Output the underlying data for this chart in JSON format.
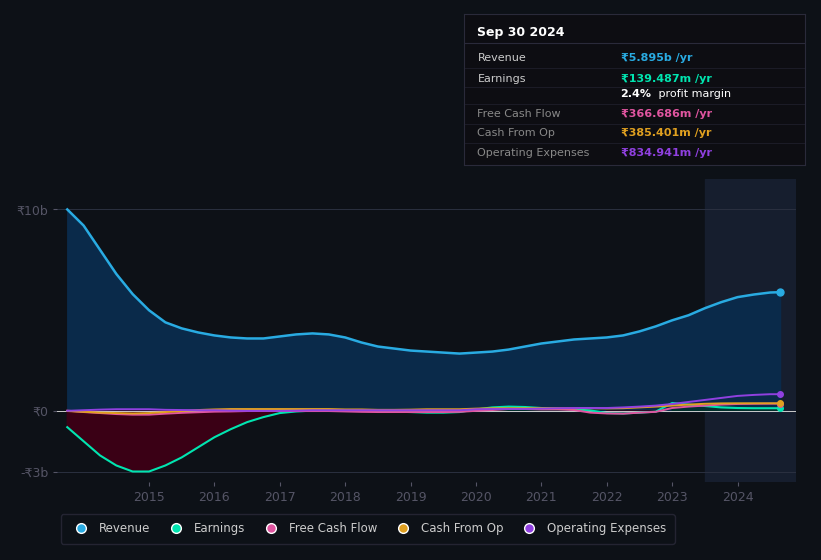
{
  "background_color": "#0d1117",
  "plot_bg_color": "#0d1117",
  "years": [
    2013.75,
    2014.0,
    2014.25,
    2014.5,
    2014.75,
    2015.0,
    2015.25,
    2015.5,
    2015.75,
    2016.0,
    2016.25,
    2016.5,
    2016.75,
    2017.0,
    2017.25,
    2017.5,
    2017.75,
    2018.0,
    2018.25,
    2018.5,
    2018.75,
    2019.0,
    2019.25,
    2019.5,
    2019.75,
    2020.0,
    2020.25,
    2020.5,
    2020.75,
    2021.0,
    2021.25,
    2021.5,
    2021.75,
    2022.0,
    2022.25,
    2022.5,
    2022.75,
    2023.0,
    2023.25,
    2023.5,
    2023.75,
    2024.0,
    2024.25,
    2024.5,
    2024.65
  ],
  "revenue": [
    10.0,
    9.2,
    8.0,
    6.8,
    5.8,
    5.0,
    4.4,
    4.1,
    3.9,
    3.75,
    3.65,
    3.6,
    3.6,
    3.7,
    3.8,
    3.85,
    3.8,
    3.65,
    3.4,
    3.2,
    3.1,
    3.0,
    2.95,
    2.9,
    2.85,
    2.9,
    2.95,
    3.05,
    3.2,
    3.35,
    3.45,
    3.55,
    3.6,
    3.65,
    3.75,
    3.95,
    4.2,
    4.5,
    4.75,
    5.1,
    5.4,
    5.65,
    5.78,
    5.88,
    5.895
  ],
  "earnings": [
    -0.8,
    -1.5,
    -2.2,
    -2.7,
    -3.0,
    -3.0,
    -2.7,
    -2.3,
    -1.8,
    -1.3,
    -0.9,
    -0.55,
    -0.3,
    -0.1,
    -0.02,
    0.02,
    0.05,
    0.05,
    0.03,
    0.0,
    -0.03,
    -0.05,
    -0.08,
    -0.08,
    -0.05,
    0.08,
    0.18,
    0.22,
    0.2,
    0.15,
    0.12,
    0.08,
    0.03,
    -0.1,
    -0.12,
    -0.08,
    -0.03,
    0.4,
    0.32,
    0.25,
    0.18,
    0.15,
    0.14,
    0.14,
    0.139
  ],
  "free_cash_flow": [
    0.02,
    -0.05,
    -0.1,
    -0.15,
    -0.18,
    -0.18,
    -0.13,
    -0.09,
    -0.06,
    -0.03,
    -0.02,
    0.0,
    0.0,
    0.0,
    0.0,
    0.0,
    0.0,
    -0.02,
    -0.04,
    -0.05,
    -0.05,
    -0.05,
    -0.05,
    -0.05,
    -0.04,
    0.01,
    0.05,
    0.1,
    0.1,
    0.08,
    0.08,
    0.05,
    -0.08,
    -0.12,
    -0.13,
    -0.08,
    -0.04,
    0.15,
    0.22,
    0.27,
    0.32,
    0.35,
    0.36,
    0.367,
    0.367
  ],
  "cash_from_op": [
    0.0,
    -0.04,
    -0.08,
    -0.1,
    -0.12,
    -0.1,
    -0.05,
    0.0,
    0.05,
    0.08,
    0.1,
    0.1,
    0.1,
    0.1,
    0.1,
    0.1,
    0.1,
    0.08,
    0.08,
    0.06,
    0.06,
    0.07,
    0.09,
    0.09,
    0.09,
    0.12,
    0.14,
    0.14,
    0.14,
    0.14,
    0.14,
    0.14,
    0.14,
    0.13,
    0.14,
    0.18,
    0.22,
    0.27,
    0.32,
    0.36,
    0.38,
    0.385,
    0.385,
    0.385,
    0.385
  ],
  "operating_expenses": [
    0.01,
    0.04,
    0.07,
    0.09,
    0.09,
    0.09,
    0.06,
    0.05,
    0.04,
    0.04,
    0.02,
    0.01,
    0.01,
    0.01,
    0.02,
    0.04,
    0.04,
    0.04,
    0.04,
    0.04,
    0.04,
    0.04,
    0.04,
    0.04,
    0.04,
    0.09,
    0.1,
    0.1,
    0.1,
    0.12,
    0.14,
    0.15,
    0.15,
    0.15,
    0.18,
    0.22,
    0.27,
    0.35,
    0.45,
    0.55,
    0.65,
    0.75,
    0.8,
    0.835,
    0.835
  ],
  "revenue_color": "#29abe2",
  "earnings_color": "#00e5b0",
  "free_cash_flow_color": "#e055a0",
  "cash_from_op_color": "#e0a020",
  "operating_expenses_color": "#9040e0",
  "revenue_fill_color": "#0a2a4a",
  "earnings_fill_neg_color": "#3a0015",
  "earnings_fill_pos_color": "#003322",
  "ylim_min": -3.5,
  "ylim_max": 11.5,
  "ytick_positions": [
    -3.0,
    0.0,
    10.0
  ],
  "ytick_labels": [
    "-₹3b",
    "₹0",
    "₹10b"
  ],
  "xticks": [
    2015,
    2016,
    2017,
    2018,
    2019,
    2020,
    2021,
    2022,
    2023,
    2024
  ],
  "xmin": 2013.6,
  "xmax": 2024.9,
  "forecast_start": 2023.5,
  "info_box": {
    "title": "Sep 30 2024",
    "rows": [
      {
        "label": "Revenue",
        "value": "₹5.895b /yr",
        "value_color": "#29abe2",
        "label_color": "#cccccc"
      },
      {
        "label": "Earnings",
        "value": "₹139.487m /yr",
        "value_color": "#00e5b0",
        "label_color": "#cccccc"
      },
      {
        "label": "",
        "value2_bold": "2.4%",
        "value2_normal": " profit margin",
        "value_color": "#ffffff"
      },
      {
        "label": "Free Cash Flow",
        "value": "₹366.686m /yr",
        "value_color": "#e055a0",
        "label_color": "#888888"
      },
      {
        "label": "Cash From Op",
        "value": "₹385.401m /yr",
        "value_color": "#e0a020",
        "label_color": "#888888"
      },
      {
        "label": "Operating Expenses",
        "value": "₹834.941m /yr",
        "value_color": "#9040e0",
        "label_color": "#888888"
      }
    ]
  },
  "legend": [
    {
      "label": "Revenue",
      "color": "#29abe2"
    },
    {
      "label": "Earnings",
      "color": "#00e5b0"
    },
    {
      "label": "Free Cash Flow",
      "color": "#e055a0"
    },
    {
      "label": "Cash From Op",
      "color": "#e0a020"
    },
    {
      "label": "Operating Expenses",
      "color": "#9040e0"
    }
  ]
}
